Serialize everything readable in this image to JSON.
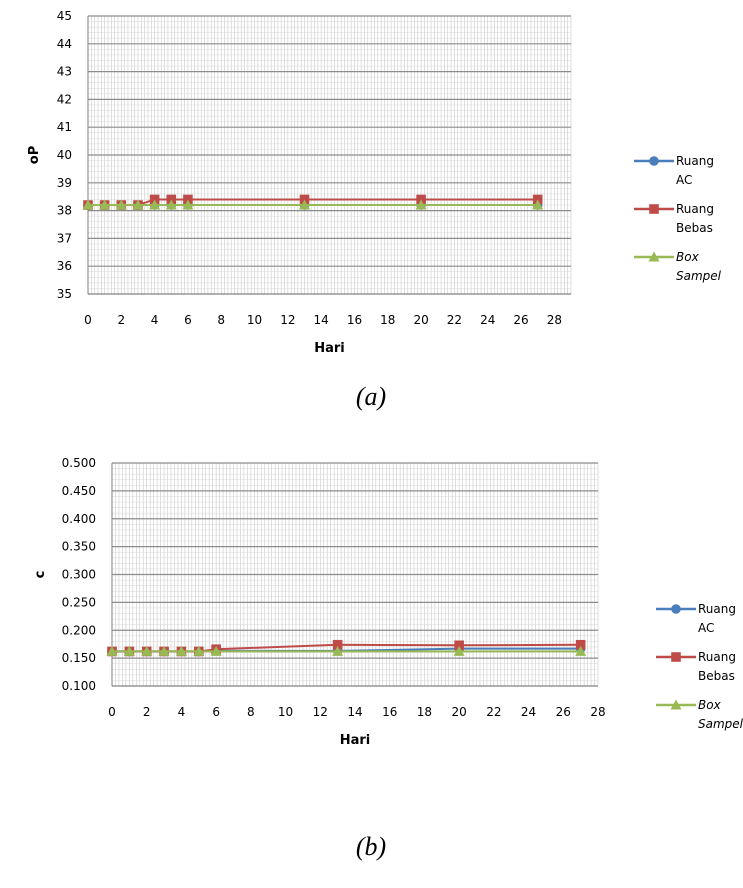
{
  "chart_data": [
    {
      "type": "line",
      "caption": "(a)",
      "xlabel": "Hari",
      "ylabel": "oP",
      "xlim": [
        0,
        29
      ],
      "ylim": [
        35,
        45
      ],
      "xticks": [
        "0",
        "2",
        "4",
        "6",
        "8",
        "10",
        "12",
        "14",
        "16",
        "18",
        "20",
        "22",
        "24",
        "26",
        "28"
      ],
      "yticks": [
        "35",
        "36",
        "37",
        "38",
        "39",
        "40",
        "41",
        "42",
        "43",
        "44",
        "45"
      ],
      "grid": true,
      "legend_position": "right",
      "series": [
        {
          "name": [
            "Ruang",
            "AC"
          ],
          "italic": false,
          "color": "#4a7ebb",
          "marker": "circle",
          "x": [
            0,
            1,
            2,
            3,
            4,
            5,
            6,
            13,
            20,
            27
          ],
          "y": [
            38.2,
            38.2,
            38.2,
            38.2,
            38.2,
            38.2,
            38.2,
            38.2,
            38.2,
            38.2
          ]
        },
        {
          "name": [
            "Ruang",
            "Bebas"
          ],
          "italic": false,
          "color": "#be4b48",
          "marker": "square",
          "x": [
            0,
            1,
            2,
            3,
            4,
            5,
            6,
            13,
            20,
            27
          ],
          "y": [
            38.2,
            38.2,
            38.2,
            38.2,
            38.4,
            38.4,
            38.4,
            38.4,
            38.4,
            38.4
          ]
        },
        {
          "name": [
            "Box",
            "Sampel"
          ],
          "italic": true,
          "color": "#98b954",
          "marker": "triangle",
          "x": [
            0,
            1,
            2,
            3,
            4,
            5,
            6,
            13,
            20,
            27
          ],
          "y": [
            38.2,
            38.2,
            38.2,
            38.2,
            38.2,
            38.2,
            38.2,
            38.2,
            38.2,
            38.2
          ]
        }
      ]
    },
    {
      "type": "line",
      "caption": "(b)",
      "xlabel": "Hari",
      "ylabel": "c",
      "xlim": [
        0,
        28
      ],
      "ylim": [
        0.1,
        0.5
      ],
      "xticks": [
        "0",
        "2",
        "4",
        "6",
        "8",
        "10",
        "12",
        "14",
        "16",
        "18",
        "20",
        "22",
        "24",
        "26",
        "28"
      ],
      "yticks": [
        "0.100",
        "0.150",
        "0.200",
        "0.250",
        "0.300",
        "0.350",
        "0.400",
        "0.450",
        "0.500"
      ],
      "grid": true,
      "legend_position": "right",
      "series": [
        {
          "name": [
            "Ruang",
            "AC"
          ],
          "italic": false,
          "color": "#4a7ebb",
          "marker": "circle",
          "x": [
            0,
            1,
            2,
            3,
            4,
            5,
            6,
            13,
            20,
            27
          ],
          "y": [
            0.162,
            0.162,
            0.162,
            0.162,
            0.162,
            0.162,
            0.163,
            0.163,
            0.167,
            0.167
          ]
        },
        {
          "name": [
            "Ruang",
            "Bebas"
          ],
          "italic": false,
          "color": "#be4b48",
          "marker": "square",
          "x": [
            0,
            1,
            2,
            3,
            4,
            5,
            6,
            13,
            20,
            27
          ],
          "y": [
            0.162,
            0.162,
            0.162,
            0.162,
            0.162,
            0.162,
            0.166,
            0.174,
            0.173,
            0.174
          ]
        },
        {
          "name": [
            "Box",
            "Sampel"
          ],
          "italic": true,
          "color": "#98b954",
          "marker": "triangle",
          "x": [
            0,
            1,
            2,
            3,
            4,
            5,
            6,
            13,
            20,
            27
          ],
          "y": [
            0.162,
            0.162,
            0.162,
            0.162,
            0.162,
            0.162,
            0.162,
            0.162,
            0.162,
            0.162
          ]
        }
      ]
    }
  ]
}
